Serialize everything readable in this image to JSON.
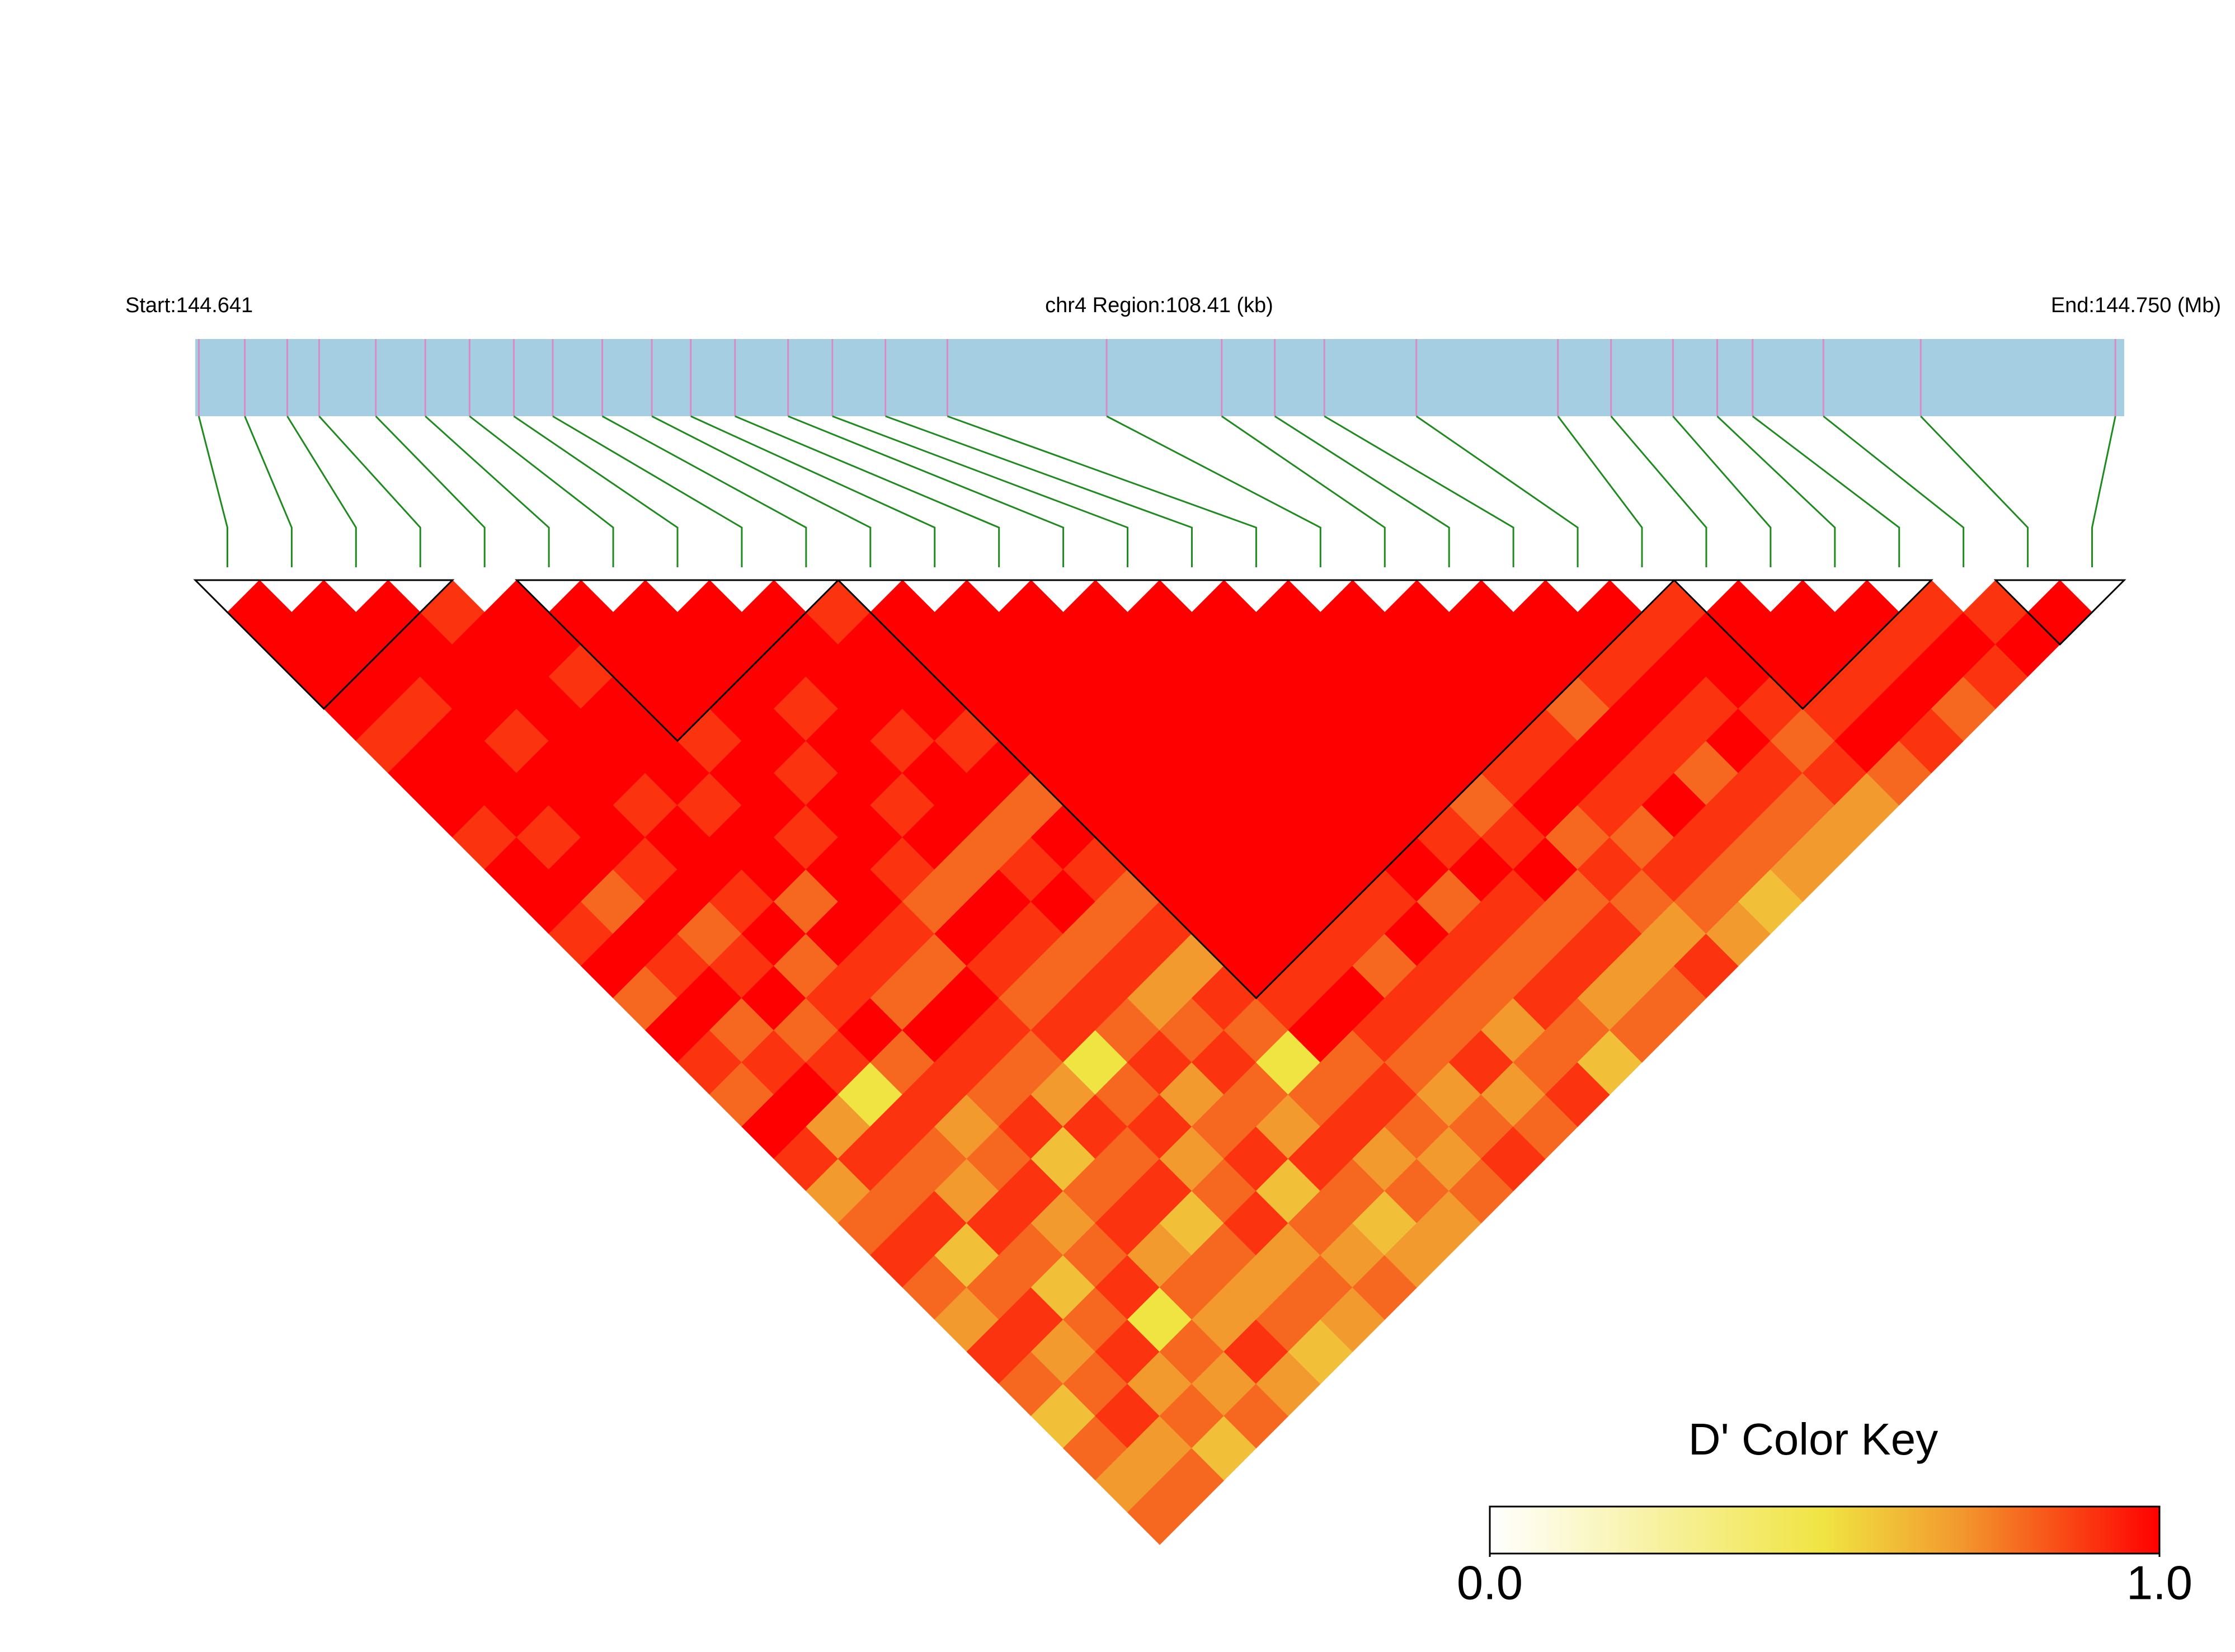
{
  "chart_data": {
    "type": "ld_heatmap",
    "start_label": "Start:144.641",
    "region_label": "chr4 Region:108.41 (kb)",
    "end_label": "End:144.750 (Mb)",
    "xlim": [
      144.641,
      144.75
    ],
    "positions": [
      144.6412,
      144.6438,
      144.6462,
      144.648,
      144.6512,
      144.654,
      144.6565,
      144.659,
      144.6612,
      144.664,
      144.6668,
      144.669,
      144.6715,
      144.6745,
      144.677,
      144.68,
      144.6835,
      144.6925,
      144.699,
      144.702,
      144.7048,
      144.71,
      144.718,
      144.721,
      144.7245,
      144.727,
      144.729,
      144.733,
      144.7385,
      144.7495
    ],
    "dprime": [
      [
        1,
        1,
        1,
        1,
        0.9,
        1,
        1,
        0.9,
        1,
        1,
        0.9,
        1,
        0.8,
        1,
        0.9,
        0.8,
        1,
        0.9,
        0.7,
        0.8,
        0.9,
        0.8,
        0.7,
        0.9,
        0.8,
        0.6,
        0.8,
        0.7,
        0.8
      ],
      [
        1,
        1,
        1,
        0.9,
        1,
        1,
        1,
        0.9,
        1,
        0.8,
        1,
        0.9,
        1,
        0.8,
        0.9,
        1,
        0.7,
        0.9,
        0.8,
        0.9,
        0.6,
        0.8,
        0.9,
        0.7,
        0.8,
        0.9,
        0.7,
        0.8
      ],
      [
        1,
        1,
        1,
        1,
        0.9,
        1,
        1,
        1,
        0.9,
        1,
        0.8,
        0.9,
        1,
        0.8,
        0.9,
        0.5,
        0.9,
        0.8,
        0.7,
        0.9,
        0.8,
        0.6,
        0.8,
        0.9,
        0.7,
        0.8,
        0.6
      ],
      [
        0.9,
        1,
        1,
        1,
        1,
        1,
        0.9,
        1,
        1,
        0.9,
        1,
        0.8,
        0.9,
        1,
        0.8,
        0.9,
        0.7,
        0.8,
        0.9,
        0.7,
        0.8,
        0.9,
        0.5,
        0.8,
        0.7,
        0.8
      ],
      [
        1,
        1,
        0.9,
        1,
        1,
        1,
        0.9,
        1,
        1,
        0.8,
        1,
        0.9,
        0.8,
        1,
        0.9,
        0.8,
        0.9,
        0.6,
        0.8,
        0.9,
        0.7,
        0.8,
        0.7,
        0.9,
        0.7
      ],
      [
        1,
        1,
        1,
        1,
        0.9,
        1,
        1,
        0.9,
        1,
        1,
        0.9,
        0.8,
        1,
        0.9,
        0.8,
        0.7,
        0.9,
        0.8,
        0.9,
        0.6,
        0.8,
        0.7,
        0.8,
        0.6
      ],
      [
        1,
        1,
        1,
        1,
        1,
        0.9,
        1,
        1,
        0.9,
        0.8,
        1,
        0.9,
        0.8,
        0.9,
        0.5,
        0.8,
        0.9,
        0.7,
        0.8,
        0.9,
        0.7,
        0.8,
        0.7
      ],
      [
        1,
        1,
        1,
        0.9,
        1,
        1,
        0.9,
        1,
        0.8,
        1,
        0.9,
        0.8,
        0.9,
        0.8,
        0.9,
        0.7,
        0.8,
        0.9,
        0.6,
        0.8,
        0.7,
        0.8
      ],
      [
        1,
        1,
        1,
        1,
        0.9,
        1,
        1,
        0.8,
        0.9,
        1,
        0.8,
        0.9,
        0.7,
        0.8,
        0.9,
        0.8,
        0.7,
        0.9,
        0.8,
        0.6,
        0.7
      ],
      [
        0.9,
        1,
        1,
        1,
        0.9,
        1,
        0.8,
        1,
        0.9,
        0.8,
        0.9,
        0.7,
        0.9,
        0.8,
        0.5,
        0.8,
        0.9,
        0.7,
        0.8,
        0.7
      ],
      [
        1,
        1,
        1,
        1,
        1,
        1,
        1,
        1,
        1,
        1,
        1,
        1,
        0.9,
        1,
        0.8,
        0.9,
        0.8,
        0.7,
        0.8
      ],
      [
        1,
        1,
        1,
        1,
        1,
        1,
        1,
        1,
        1,
        1,
        1,
        0.9,
        1,
        0.9,
        0.8,
        0.7,
        0.8,
        0.9
      ],
      [
        1,
        1,
        1,
        1,
        1,
        1,
        1,
        1,
        1,
        1,
        0.9,
        0.8,
        0.9,
        0.8,
        0.9,
        0.7,
        0.8
      ],
      [
        1,
        1,
        1,
        1,
        1,
        1,
        1,
        1,
        1,
        0.9,
        1,
        0.9,
        0.8,
        0.7,
        0.8,
        0.9
      ],
      [
        1,
        1,
        1,
        1,
        1,
        1,
        1,
        1,
        1,
        0.8,
        0.9,
        0.8,
        0.9,
        0.8,
        0.6
      ],
      [
        1,
        1,
        1,
        1,
        1,
        1,
        1,
        0.9,
        1,
        0.9,
        0.8,
        0.9,
        0.7,
        0.8
      ],
      [
        1,
        1,
        1,
        1,
        1,
        1,
        0.8,
        0.9,
        1,
        0.8,
        0.9,
        0.7,
        0.8
      ],
      [
        1,
        1,
        1,
        1,
        1,
        0.9,
        1,
        0.8,
        0.9,
        0.8,
        0.7,
        0.9
      ],
      [
        1,
        1,
        1,
        1,
        0.9,
        1,
        0.9,
        0.8,
        0.9,
        0.8,
        0.7
      ],
      [
        1,
        1,
        1,
        0.8,
        1,
        0.9,
        1,
        0.9,
        0.8,
        0.6
      ],
      [
        1,
        1,
        0.9,
        1,
        0.9,
        0.8,
        0.9,
        0.8,
        0.7
      ],
      [
        1,
        0.9,
        1,
        0.9,
        1,
        0.9,
        0.8,
        0.7
      ],
      [
        0.9,
        1,
        1,
        0.9,
        0.8,
        0.9,
        0.7
      ],
      [
        1,
        1,
        1,
        0.9,
        1,
        0.8
      ],
      [
        1,
        1,
        0.9,
        1,
        0.9
      ],
      [
        1,
        0.9,
        1,
        0.8
      ],
      [
        0.9,
        1,
        0.9
      ],
      [
        0.9,
        1
      ],
      [
        1
      ]
    ],
    "blocks": [
      [
        0,
        3
      ],
      [
        5,
        9
      ],
      [
        10,
        22
      ],
      [
        23,
        26
      ],
      [
        28,
        29
      ]
    ],
    "key_title": "D' Color Key",
    "key_ticks": [
      {
        "value": 0,
        "label": "0.0"
      },
      {
        "value": 1,
        "label": "1.0"
      }
    ],
    "key_lim": [
      0,
      1
    ],
    "color_stops": [
      0,
      0.5,
      0.7,
      1
    ],
    "colors": [
      "#ffffff",
      "#f0e442",
      "#f29a2e",
      "#ff0000"
    ],
    "bar_color": "#a6cee3",
    "snp_tick_color": "#d98bc6",
    "connector_color": "#1f8a1f"
  }
}
